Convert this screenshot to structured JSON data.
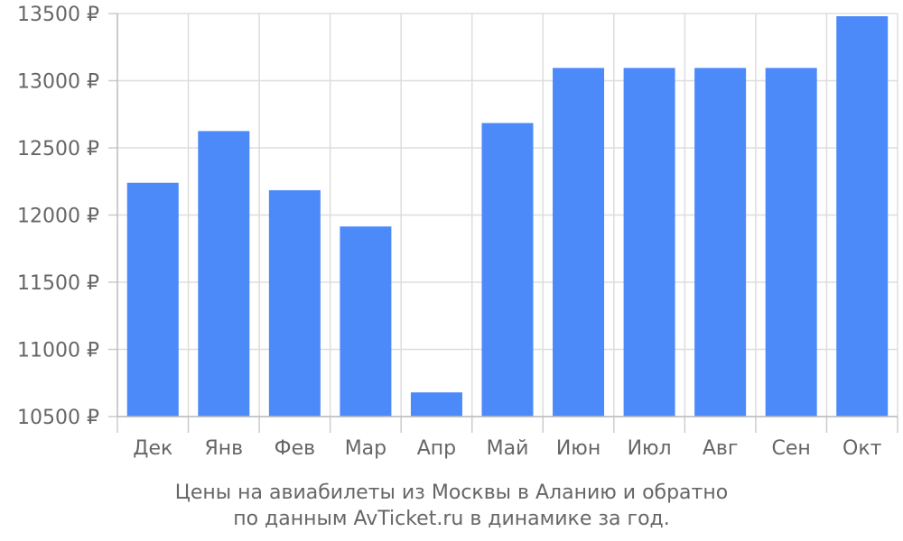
{
  "chart_data": {
    "type": "bar",
    "categories": [
      "Дек",
      "Янв",
      "Фев",
      "Мар",
      "Апр",
      "Май",
      "Июн",
      "Июл",
      "Авг",
      "Сен",
      "Окт"
    ],
    "values": [
      12240,
      12625,
      12185,
      11915,
      10680,
      12685,
      13095,
      13095,
      13095,
      13095,
      13480
    ],
    "ylim": [
      10500,
      13500
    ],
    "y_ticks": [
      10500,
      11000,
      11500,
      12000,
      12500,
      13000,
      13500
    ],
    "y_unit": "₽",
    "grid": true,
    "bar_color": "#4d8af9",
    "caption": [
      "Цены на авиабилеты из Москвы в Аланию и обратно",
      "по данным AvTicket.ru в динамике за год."
    ]
  }
}
